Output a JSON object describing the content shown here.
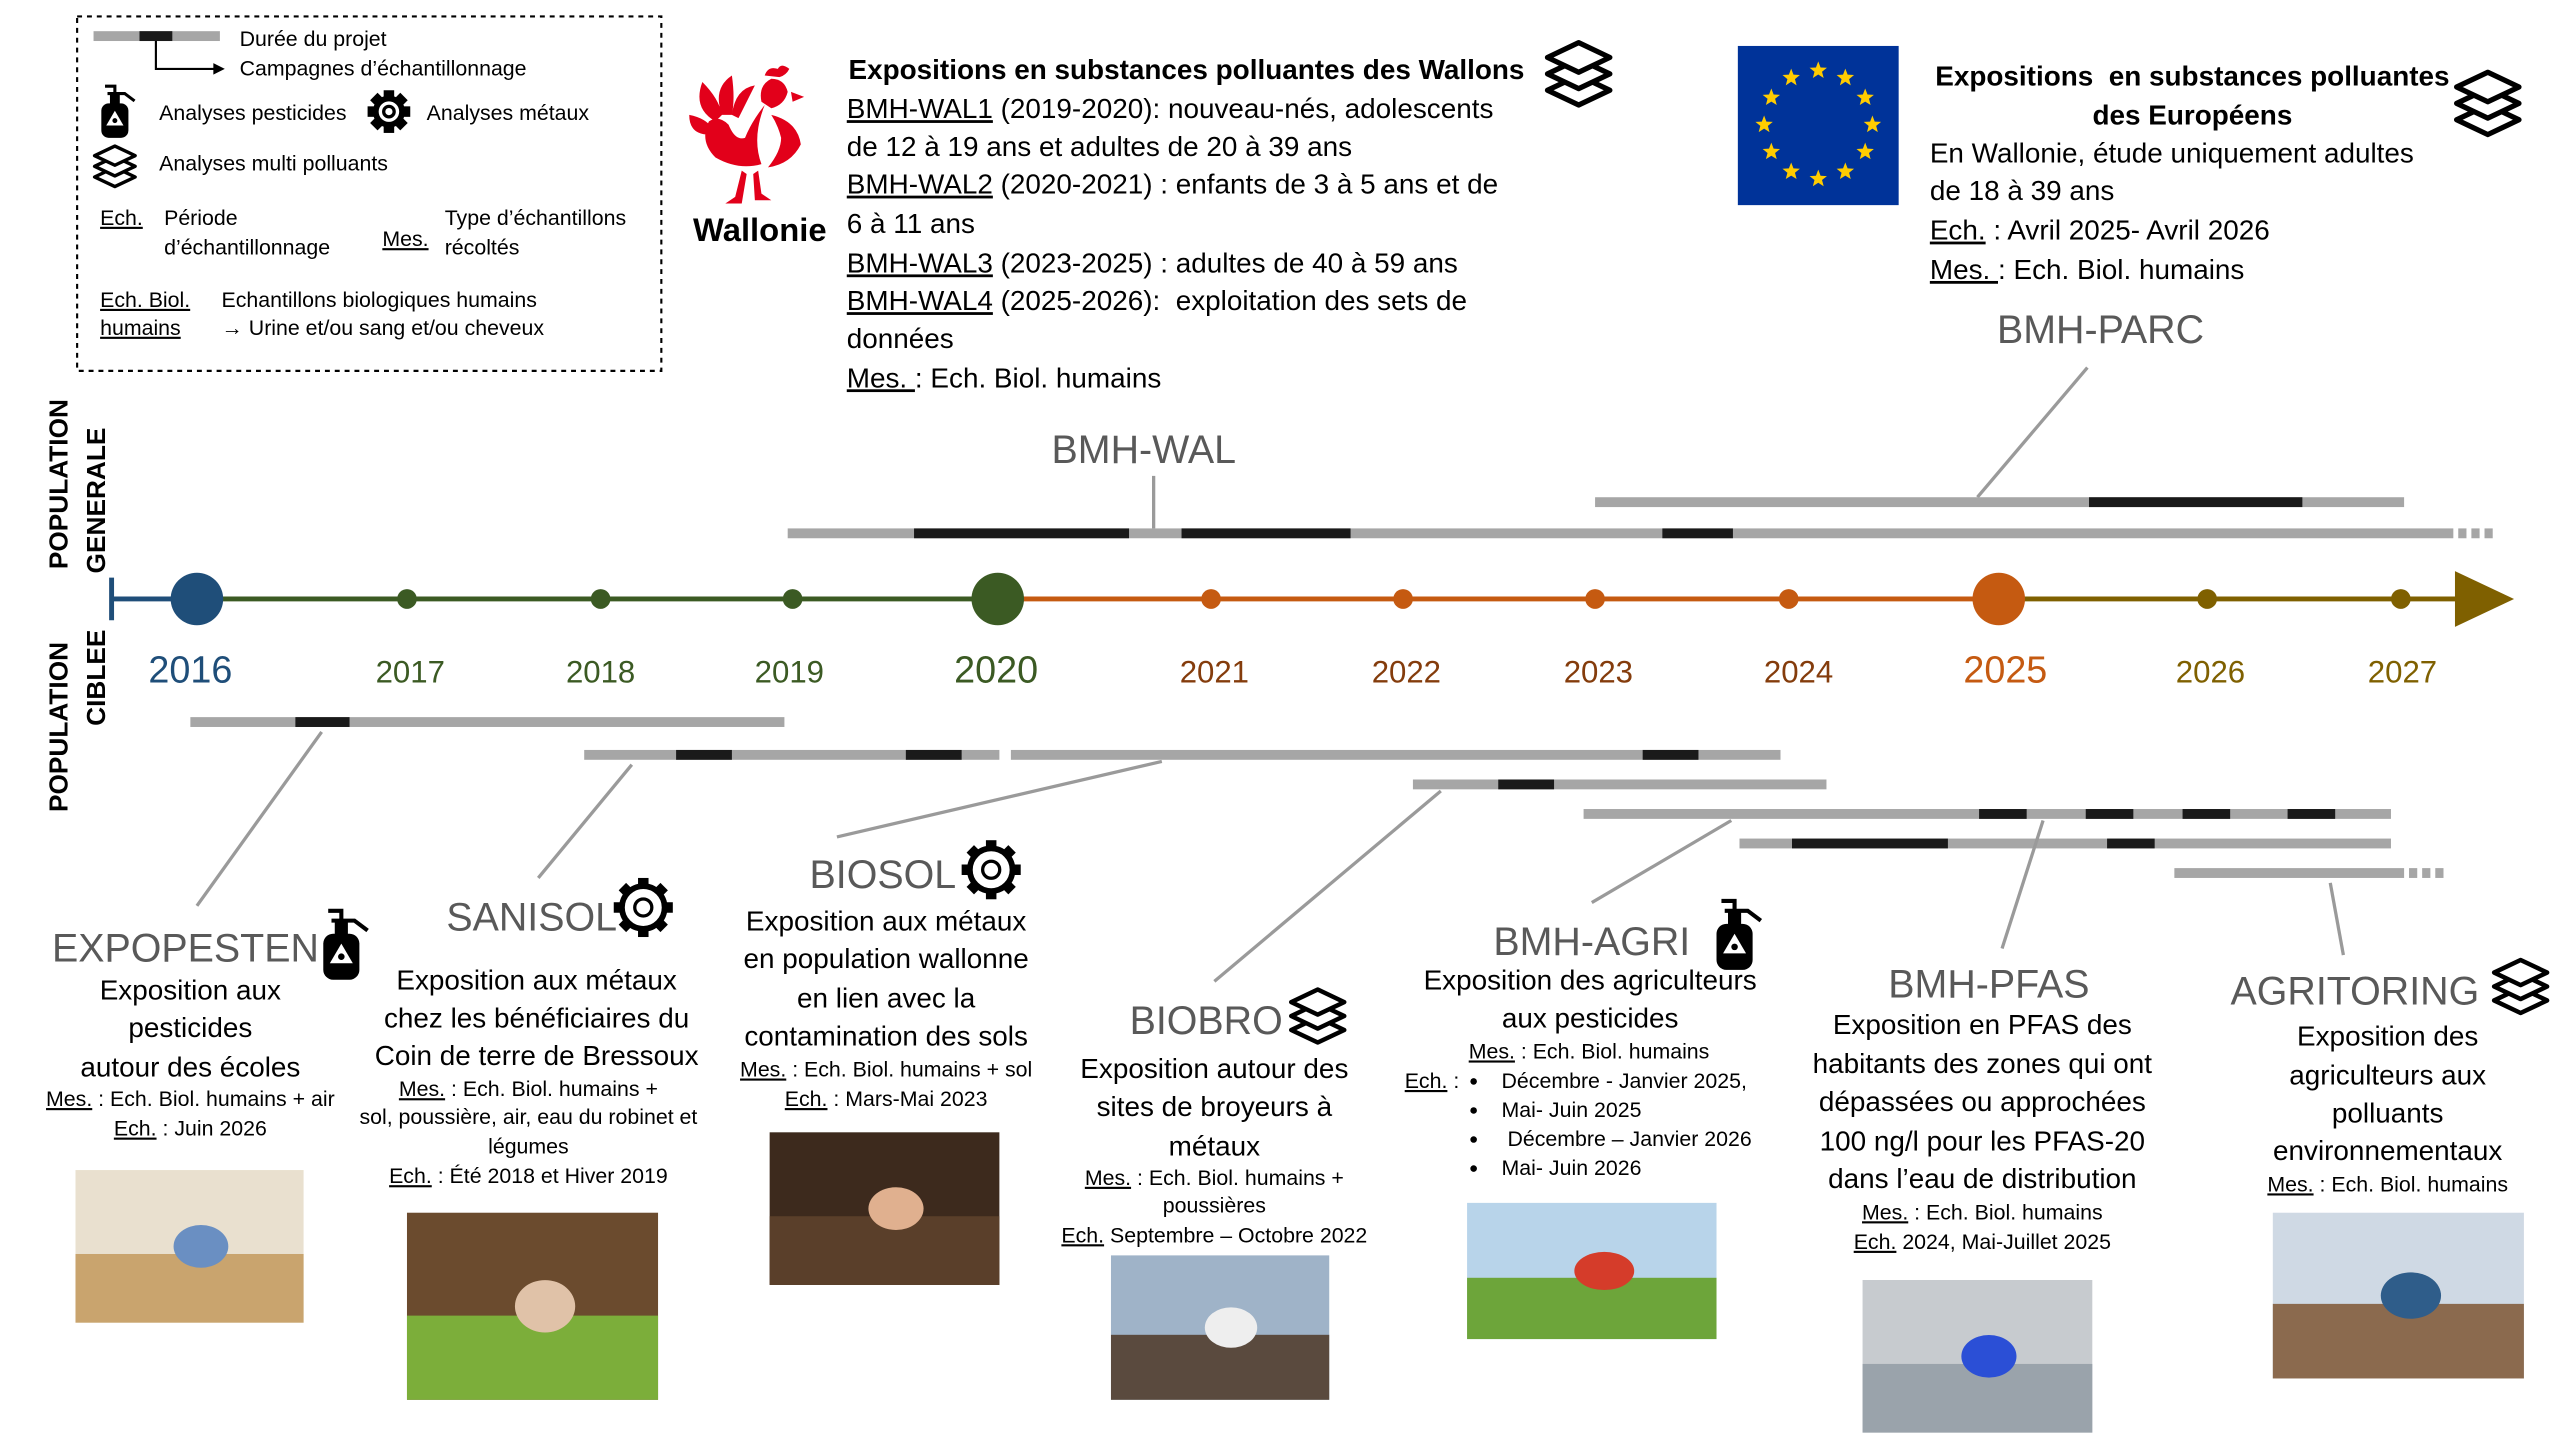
{
  "legend": {
    "project_duration": "Durée du projet",
    "sampling_campaigns": "Campagnes d’échantillonnage",
    "pesticides": "Analyses pesticides",
    "metals": "Analyses métaux",
    "multi_pollutants": "Analyses multi polluants",
    "ech": "Ech.",
    "ech_definition": [
      "Période",
      "d’échantillonnage"
    ],
    "mes": "Mes.",
    "mes_definition": [
      "Type d’échantillons",
      "récoltés"
    ],
    "ech_biol": [
      "Ech. Biol.",
      "humains"
    ],
    "ech_biol_definition": [
      "Echantillons biologiques humains",
      "→ Urine et/ou sang et/ou cheveux"
    ]
  },
  "wallonia": {
    "logo": "Wallonie",
    "title": "Expositions en substances polluantes des Wallons",
    "lines": [
      {
        "underlined": "BMH-WAL1",
        "text": " (2019-2020): nouveau-nés, adolescents"
      },
      {
        "text": "de 12 à 19 ans et adultes de 20 à 39 ans"
      },
      {
        "underlined": "BMH-WAL2",
        "text": " (2020-2021) : enfants de 3 à 5 ans et de"
      },
      {
        "text": "6 à 11 ans"
      },
      {
        "underlined": "BMH-WAL3",
        "text": " (2023-2025) : adultes de 40 à 59 ans"
      },
      {
        "underlined": "BMH-WAL4",
        "text": " (2025-2026):  exploitation des sets de"
      },
      {
        "text": "données"
      },
      {
        "underlined": "Mes. ",
        "text": ": Ech. Biol. humains"
      }
    ]
  },
  "europe": {
    "title": [
      "Expositions  en substances polluantes",
      "des Européens"
    ],
    "lines": [
      {
        "text": "En Wallonie, étude uniquement adultes"
      },
      {
        "text": "de 18 à 39 ans"
      },
      {
        "underlined": "Ech.",
        "text": " : Avril 2025- Avril 2026"
      },
      {
        "underlined": "Mes. ",
        "text": ": Ech. Biol. humains"
      }
    ]
  },
  "programs": [
    "BMH-WAL",
    "BMH-PARC"
  ],
  "axis_labels": {
    "general": [
      "POPULATION",
      "GENERALE"
    ],
    "targeted": [
      "POPULATION",
      "CIBLEE"
    ]
  },
  "years": [
    "2016",
    "2017",
    "2018",
    "2019",
    "2020",
    "2021",
    "2022",
    "2023",
    "2024",
    "2025",
    "2026",
    "2027"
  ],
  "studies": [
    {
      "name": "EXPOPESTEN",
      "description": [
        "Exposition aux",
        "pesticides",
        "autour des écoles"
      ],
      "details": [
        {
          "underlined": "Mes.",
          "text": " : Ech. Biol. humains + air"
        },
        {
          "underlined": "Ech.",
          "text": " : Juin 2026"
        }
      ]
    },
    {
      "name": "SANISOL",
      "description": [
        "Exposition aux métaux",
        "chez les bénéficiaires du",
        "Coin de terre de Bressoux"
      ],
      "details": [
        {
          "underlined": "Mes.",
          "text": " : Ech. Biol. humains +"
        },
        {
          "text": "sol, poussière, air, eau du robinet et"
        },
        {
          "text": "légumes"
        },
        {
          "underlined": "Ech.",
          "text": " : Été 2018 et Hiver 2019"
        }
      ]
    },
    {
      "name": "BIOSOL",
      "description": [
        "Exposition aux métaux",
        "en population wallonne",
        "en lien avec la",
        "contamination des sols"
      ],
      "details": [
        {
          "underlined": "Mes.",
          "text": " : Ech. Biol. humains + sol"
        },
        {
          "underlined": "Ech.",
          "text": " : Mars-Mai 2023"
        }
      ]
    },
    {
      "name": "BIOBRO",
      "description": [
        "Exposition autour des",
        "sites de broyeurs à",
        "métaux"
      ],
      "details": [
        {
          "underlined": "Mes.",
          "text": " : Ech. Biol. humains +"
        },
        {
          "text": "poussières"
        },
        {
          "underlined": "Ech.",
          "text": " Septembre – Octobre 2022"
        }
      ]
    },
    {
      "name": "BMH-AGRI",
      "description": [
        "Exposition des agriculteurs",
        "aux pesticides"
      ],
      "details": [
        {
          "underlined": "Mes.",
          "text": " : Ech. Biol. humains"
        },
        {
          "underlined": "Ech.",
          "text": " :"
        }
      ],
      "bullets": [
        "Décembre - Janvier 2025,",
        "Mai- Juin 2025",
        " Décembre – Janvier 2026",
        "Mai- Juin 2026"
      ]
    },
    {
      "name": "BMH-PFAS",
      "description": [
        "Exposition en PFAS des",
        "habitants des zones qui ont",
        "dépassées ou approchées",
        "100 ng/l pour les PFAS-20",
        "dans l’eau de distribution"
      ],
      "details": [
        {
          "underlined": "Mes.",
          "text": " : Ech. Biol. humains"
        },
        {
          "underlined": "Ech.",
          "text": " 2024, Mai-Juillet 2025"
        }
      ]
    },
    {
      "name": "AGRITORING",
      "description": [
        "Exposition des",
        "agriculteurs aux",
        "polluants",
        "environnementaux"
      ],
      "details": [
        {
          "underlined": "Mes.",
          "text": " : Ech. Biol. humains"
        }
      ]
    }
  ]
}
